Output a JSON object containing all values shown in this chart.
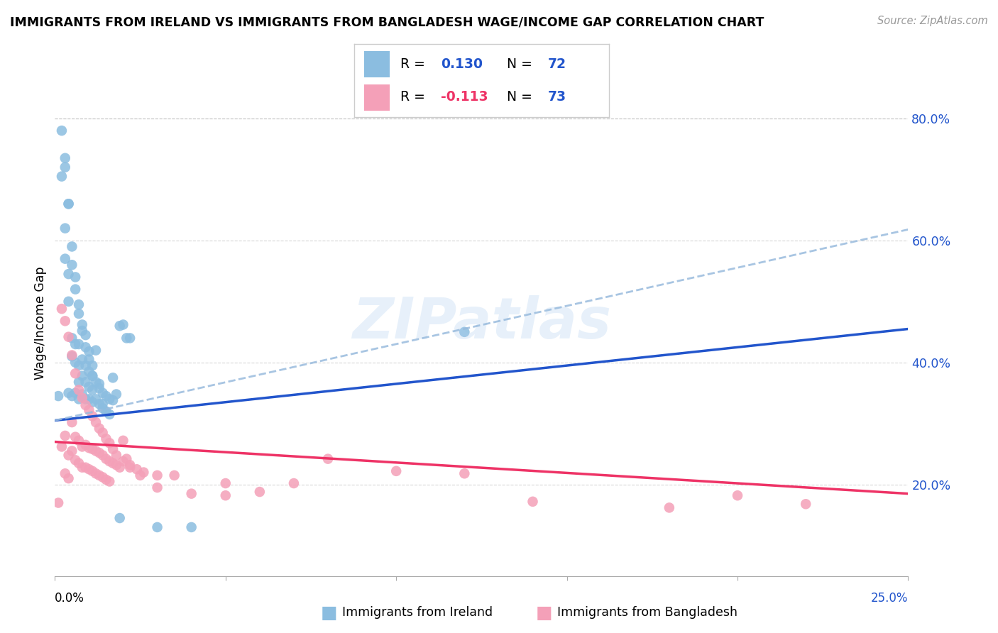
{
  "title": "IMMIGRANTS FROM IRELAND VS IMMIGRANTS FROM BANGLADESH WAGE/INCOME GAP CORRELATION CHART",
  "source": "Source: ZipAtlas.com",
  "ylabel": "Wage/Income Gap",
  "ytick_labels": [
    "20.0%",
    "40.0%",
    "60.0%",
    "80.0%"
  ],
  "ytick_values": [
    0.2,
    0.4,
    0.6,
    0.8
  ],
  "xmin": 0.0,
  "xmax": 0.25,
  "ymin": 0.05,
  "ymax": 0.88,
  "watermark": "ZIPatlas",
  "legend_r1": "R = ",
  "legend_r1_val": "0.130",
  "legend_n1": "N = ",
  "legend_n1_val": "72",
  "legend_r2": "R = ",
  "legend_r2_val": "-0.113",
  "legend_n2": "N = ",
  "legend_n2_val": "73",
  "ireland_color": "#8BBDE0",
  "bangladesh_color": "#F4A0B8",
  "ireland_line_color": "#2255CC",
  "bangladesh_line_color": "#EE3366",
  "dashed_line_color": "#99BBDD",
  "legend_text_color": "#2255CC",
  "ireland_dots_x": [
    0.001,
    0.002,
    0.003,
    0.003,
    0.004,
    0.004,
    0.004,
    0.005,
    0.005,
    0.005,
    0.006,
    0.006,
    0.006,
    0.007,
    0.007,
    0.007,
    0.007,
    0.008,
    0.008,
    0.008,
    0.009,
    0.009,
    0.009,
    0.01,
    0.01,
    0.01,
    0.011,
    0.011,
    0.011,
    0.012,
    0.012,
    0.013,
    0.013,
    0.014,
    0.014,
    0.015,
    0.015,
    0.016,
    0.016,
    0.017,
    0.018,
    0.019,
    0.02,
    0.021,
    0.022,
    0.003,
    0.004,
    0.005,
    0.006,
    0.007,
    0.008,
    0.009,
    0.01,
    0.011,
    0.012,
    0.002,
    0.003,
    0.004,
    0.005,
    0.006,
    0.007,
    0.008,
    0.009,
    0.01,
    0.011,
    0.013,
    0.014,
    0.017,
    0.019,
    0.03,
    0.04,
    0.12
  ],
  "ireland_dots_y": [
    0.345,
    0.705,
    0.62,
    0.57,
    0.545,
    0.5,
    0.35,
    0.44,
    0.41,
    0.345,
    0.43,
    0.4,
    0.35,
    0.43,
    0.395,
    0.368,
    0.34,
    0.405,
    0.378,
    0.348,
    0.395,
    0.368,
    0.34,
    0.385,
    0.36,
    0.34,
    0.378,
    0.355,
    0.335,
    0.368,
    0.34,
    0.358,
    0.332,
    0.35,
    0.325,
    0.345,
    0.32,
    0.34,
    0.315,
    0.338,
    0.348,
    0.46,
    0.462,
    0.44,
    0.44,
    0.72,
    0.66,
    0.59,
    0.54,
    0.495,
    0.462,
    0.445,
    0.418,
    0.395,
    0.42,
    0.78,
    0.735,
    0.66,
    0.56,
    0.52,
    0.48,
    0.452,
    0.425,
    0.405,
    0.378,
    0.365,
    0.332,
    0.375,
    0.145,
    0.13,
    0.13,
    0.45
  ],
  "bangladesh_dots_x": [
    0.001,
    0.002,
    0.003,
    0.003,
    0.004,
    0.004,
    0.005,
    0.005,
    0.006,
    0.006,
    0.007,
    0.007,
    0.008,
    0.008,
    0.009,
    0.009,
    0.01,
    0.01,
    0.011,
    0.011,
    0.012,
    0.012,
    0.013,
    0.013,
    0.014,
    0.014,
    0.015,
    0.015,
    0.016,
    0.016,
    0.017,
    0.018,
    0.019,
    0.02,
    0.021,
    0.022,
    0.024,
    0.026,
    0.03,
    0.035,
    0.04,
    0.05,
    0.06,
    0.07,
    0.08,
    0.1,
    0.14,
    0.18,
    0.002,
    0.003,
    0.004,
    0.005,
    0.006,
    0.007,
    0.008,
    0.009,
    0.01,
    0.011,
    0.012,
    0.013,
    0.014,
    0.015,
    0.016,
    0.017,
    0.018,
    0.02,
    0.022,
    0.025,
    0.03,
    0.05,
    0.12,
    0.2,
    0.22
  ],
  "bangladesh_dots_y": [
    0.17,
    0.262,
    0.28,
    0.218,
    0.248,
    0.21,
    0.302,
    0.255,
    0.278,
    0.24,
    0.272,
    0.235,
    0.262,
    0.228,
    0.265,
    0.228,
    0.26,
    0.225,
    0.258,
    0.222,
    0.255,
    0.218,
    0.252,
    0.215,
    0.248,
    0.212,
    0.242,
    0.208,
    0.238,
    0.205,
    0.235,
    0.232,
    0.228,
    0.272,
    0.242,
    0.232,
    0.225,
    0.22,
    0.215,
    0.215,
    0.185,
    0.202,
    0.188,
    0.202,
    0.242,
    0.222,
    0.172,
    0.162,
    0.488,
    0.468,
    0.442,
    0.412,
    0.382,
    0.355,
    0.342,
    0.33,
    0.322,
    0.312,
    0.302,
    0.292,
    0.285,
    0.275,
    0.268,
    0.258,
    0.248,
    0.238,
    0.228,
    0.215,
    0.195,
    0.182,
    0.218,
    0.182,
    0.168
  ],
  "ireland_trend_x": [
    0.0,
    0.25
  ],
  "ireland_trend_y": [
    0.305,
    0.455
  ],
  "bangladesh_trend_x": [
    0.0,
    0.25
  ],
  "bangladesh_trend_y": [
    0.27,
    0.185
  ],
  "dashed_trend_x": [
    0.0,
    0.25
  ],
  "dashed_trend_y": [
    0.305,
    0.618
  ],
  "xtick_positions": [
    0.0,
    0.05,
    0.1,
    0.15,
    0.2,
    0.25
  ],
  "grid_alpha": 0.6,
  "dot_size": 110
}
